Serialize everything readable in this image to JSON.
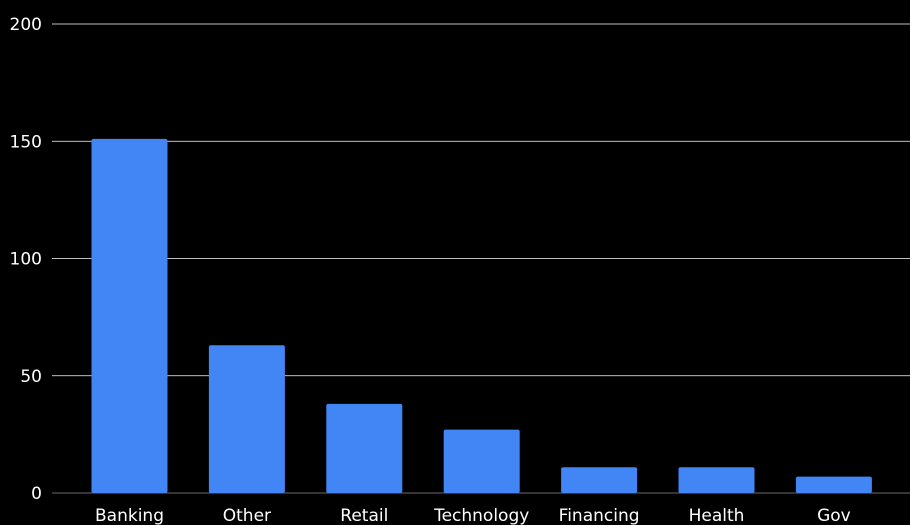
{
  "chart_data": {
    "type": "bar",
    "categories": [
      "Banking",
      "Other",
      "Retail",
      "Technology",
      "Financing",
      "Health",
      "Gov"
    ],
    "values": [
      151,
      63,
      38,
      27,
      11,
      11,
      7
    ],
    "title": "",
    "xlabel": "",
    "ylabel": "",
    "ylim": [
      0,
      200
    ],
    "yticks": [
      "0",
      "50",
      "100",
      "150",
      "200"
    ],
    "grid": true,
    "legend": "none",
    "colors": {
      "background": "#000000",
      "bar": "#4285f4",
      "grid": "#ffffff",
      "text": "#ffffff",
      "baseline": "#555555"
    }
  }
}
